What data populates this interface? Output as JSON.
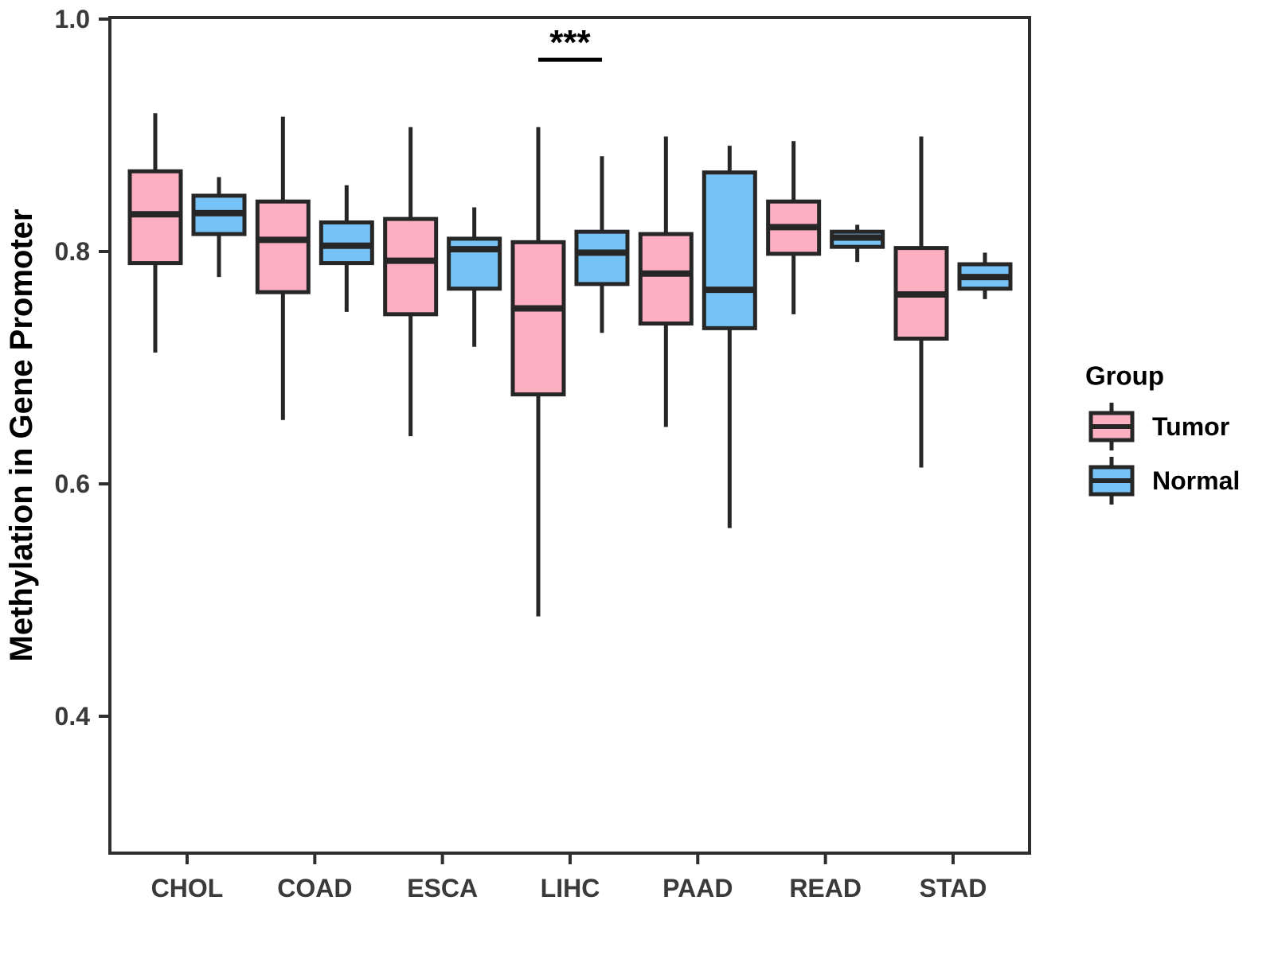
{
  "figure": {
    "background": "#ffffff"
  },
  "style": {
    "box_border": "#262626",
    "axis_line_color": "#2e2e2e",
    "axis_text_color": "#3a3a3a",
    "title_text_color": "#000000",
    "annotation_color": "#000000",
    "tumor_fill": "#FBAFC0",
    "normal_fill": "#76C1F5"
  },
  "chart_data": {
    "type": "grouped_boxplot",
    "title": "",
    "xlabel": "",
    "ylabel": "Methylation in Gene Promoter",
    "categories": [
      "CHOL",
      "COAD",
      "ESCA",
      "LIHC",
      "PAAD",
      "READ",
      "STAD"
    ],
    "y_ticks": [
      {
        "value": 1.0,
        "label": "1.0"
      },
      {
        "value": 0.8,
        "label": "0.8"
      },
      {
        "value": 0.6,
        "label": "0.6"
      },
      {
        "value": 0.4,
        "label": "0.4"
      }
    ],
    "ylim": [
      0.282,
      1.003
    ],
    "grid": false,
    "legend": {
      "title": "Group",
      "position": "right",
      "entries": [
        {
          "label": "Tumor",
          "color": "#FBAFC0"
        },
        {
          "label": "Normal",
          "color": "#76C1F5"
        }
      ]
    },
    "series": [
      {
        "name": "Tumor",
        "color": "#FBAFC0",
        "boxes": [
          {
            "category": "CHOL",
            "min": 0.713,
            "q1": 0.79,
            "median": 0.832,
            "q3": 0.869,
            "max": 0.919
          },
          {
            "category": "COAD",
            "min": 0.655,
            "q1": 0.765,
            "median": 0.81,
            "q3": 0.843,
            "max": 0.916
          },
          {
            "category": "ESCA",
            "min": 0.641,
            "q1": 0.746,
            "median": 0.792,
            "q3": 0.828,
            "max": 0.907
          },
          {
            "category": "LIHC",
            "min": 0.486,
            "q1": 0.677,
            "median": 0.751,
            "q3": 0.808,
            "max": 0.907
          },
          {
            "category": "PAAD",
            "min": 0.649,
            "q1": 0.738,
            "median": 0.781,
            "q3": 0.815,
            "max": 0.899
          },
          {
            "category": "READ",
            "min": 0.746,
            "q1": 0.798,
            "median": 0.821,
            "q3": 0.843,
            "max": 0.895
          },
          {
            "category": "STAD",
            "min": 0.614,
            "q1": 0.725,
            "median": 0.763,
            "q3": 0.803,
            "max": 0.899
          }
        ]
      },
      {
        "name": "Normal",
        "color": "#76C1F5",
        "boxes": [
          {
            "category": "CHOL",
            "min": 0.778,
            "q1": 0.815,
            "median": 0.833,
            "q3": 0.848,
            "max": 0.864
          },
          {
            "category": "COAD",
            "min": 0.748,
            "q1": 0.79,
            "median": 0.805,
            "q3": 0.825,
            "max": 0.857
          },
          {
            "category": "ESCA",
            "min": 0.718,
            "q1": 0.768,
            "median": 0.802,
            "q3": 0.811,
            "max": 0.838
          },
          {
            "category": "LIHC",
            "min": 0.73,
            "q1": 0.772,
            "median": 0.799,
            "q3": 0.817,
            "max": 0.882
          },
          {
            "category": "PAAD",
            "min": 0.562,
            "q1": 0.734,
            "median": 0.767,
            "q3": 0.868,
            "max": 0.891
          },
          {
            "category": "READ",
            "min": 0.791,
            "q1": 0.804,
            "median": 0.812,
            "q3": 0.817,
            "max": 0.823
          },
          {
            "category": "STAD",
            "min": 0.759,
            "q1": 0.768,
            "median": 0.778,
            "q3": 0.789,
            "max": 0.799
          }
        ]
      }
    ],
    "significance": {
      "category": "LIHC",
      "label": "***",
      "bar_y": 0.965,
      "label_y": 0.97
    }
  }
}
